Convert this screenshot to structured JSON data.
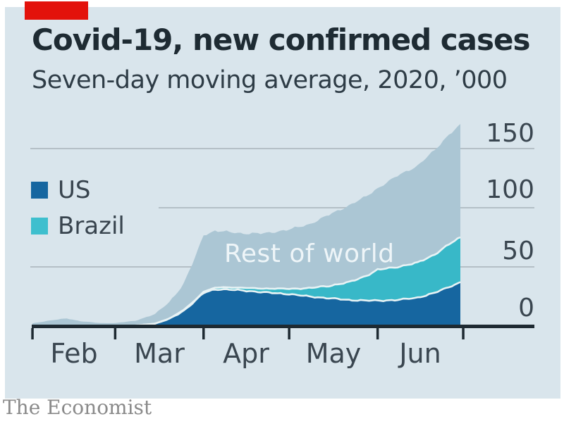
{
  "page": {
    "source": "The Economist"
  },
  "colors": {
    "brand_red": "#e3120b",
    "card_background": "#d9e5ec",
    "gridline": "#b4bfc6",
    "axis": "#1e2a32",
    "separator_stroke": "#e8f3f5",
    "title_text": "#1e2b33",
    "axis_text": "#3a4650",
    "annotation_text": "#eef5f8"
  },
  "chart_data": {
    "type": "area",
    "stacked": true,
    "title": "Covid-19, new confirmed cases",
    "subtitle": "Seven-day moving average, 2020, ’000",
    "unit": "thousand new confirmed cases per day (seven-day moving average)",
    "x_start_date": "2020-02-01",
    "x_domain_days": [
      0,
      150
    ],
    "x_tick_days": [
      0,
      29,
      60,
      90,
      121,
      151
    ],
    "month_labels": [
      "Feb",
      "Mar",
      "Apr",
      "May",
      "Jun"
    ],
    "y_ticks": [
      150,
      100,
      50,
      0
    ],
    "ylim": [
      0,
      175
    ],
    "grid": true,
    "legend_position": "middle-left",
    "annotations": [
      {
        "text": "Rest of world",
        "series": "Rest of world"
      }
    ],
    "legend": [
      {
        "label": "US",
        "color": "#1666a0"
      },
      {
        "label": "Brazil",
        "color": "#3ebfce"
      }
    ],
    "series": [
      {
        "name": "US",
        "color": "#1666a0",
        "points": [
          [
            0,
            0
          ],
          [
            29,
            0.1
          ],
          [
            36,
            0.4
          ],
          [
            43,
            2
          ],
          [
            48,
            6
          ],
          [
            53,
            13
          ],
          [
            57,
            21
          ],
          [
            60,
            28
          ],
          [
            64,
            31
          ],
          [
            67,
            31
          ],
          [
            74,
            30
          ],
          [
            81,
            28.5
          ],
          [
            90,
            27
          ],
          [
            97,
            25
          ],
          [
            104,
            23.5
          ],
          [
            111,
            22
          ],
          [
            117,
            21.5
          ],
          [
            121,
            21.5
          ],
          [
            128,
            22
          ],
          [
            135,
            24
          ],
          [
            141,
            28
          ],
          [
            146,
            33
          ],
          [
            150,
            37
          ]
        ]
      },
      {
        "name": "Brazil",
        "color": "#38b8c8",
        "points": [
          [
            0,
            0
          ],
          [
            36,
            0
          ],
          [
            43,
            0.1
          ],
          [
            48,
            0.3
          ],
          [
            53,
            0.6
          ],
          [
            57,
            0.8
          ],
          [
            60,
            1
          ],
          [
            64,
            1.4
          ],
          [
            67,
            1.8
          ],
          [
            74,
            2.3
          ],
          [
            81,
            3.2
          ],
          [
            90,
            4.5
          ],
          [
            97,
            7
          ],
          [
            104,
            10.5
          ],
          [
            111,
            15
          ],
          [
            117,
            21
          ],
          [
            121,
            26
          ],
          [
            128,
            28
          ],
          [
            135,
            29.5
          ],
          [
            141,
            32.5
          ],
          [
            146,
            36
          ],
          [
            150,
            38
          ]
        ]
      },
      {
        "name": "Rest of world",
        "color": "#abc6d4",
        "points": [
          [
            0,
            2.3
          ],
          [
            6,
            4.6
          ],
          [
            12,
            6.4
          ],
          [
            17,
            4
          ],
          [
            24,
            2.4
          ],
          [
            29,
            2.4
          ],
          [
            36,
            4
          ],
          [
            43,
            8
          ],
          [
            48,
            14
          ],
          [
            53,
            22
          ],
          [
            57,
            36
          ],
          [
            60,
            48
          ],
          [
            64,
            48
          ],
          [
            67,
            47
          ],
          [
            74,
            46
          ],
          [
            81,
            46.5
          ],
          [
            90,
            50
          ],
          [
            97,
            54
          ],
          [
            104,
            60
          ],
          [
            111,
            65
          ],
          [
            117,
            67
          ],
          [
            121,
            69
          ],
          [
            128,
            77
          ],
          [
            135,
            82
          ],
          [
            141,
            88
          ],
          [
            146,
            93
          ],
          [
            150,
            95
          ]
        ]
      }
    ]
  }
}
